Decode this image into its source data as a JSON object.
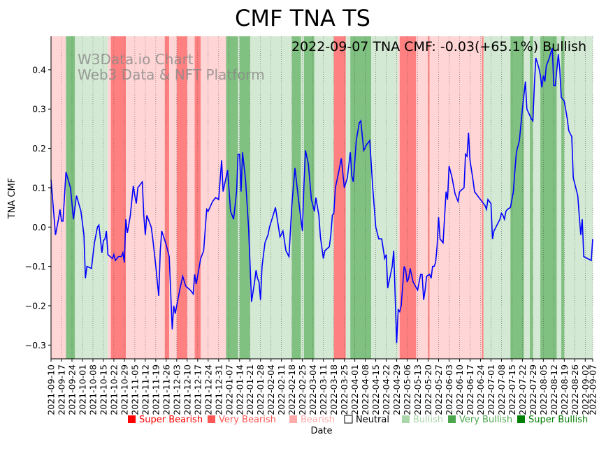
{
  "chart_data": {
    "type": "line",
    "title": "CMF TNA TS",
    "status_label": "2022-09-07 TNA CMF: -0.03(+65.1%) Bullish",
    "watermark": [
      "W3Data.io Chart",
      "Web3 Data & NFT Platform"
    ],
    "xlabel": "Date",
    "ylabel": "TNA CMF",
    "ylim": [
      -0.335,
      0.485
    ],
    "yticks": [
      -0.3,
      -0.2,
      -0.1,
      0.0,
      0.1,
      0.2,
      0.3,
      0.4
    ],
    "ytick_labels": [
      "−0.3",
      "−0.2",
      "−0.1",
      "0.0",
      "0.1",
      "0.2",
      "0.3",
      "0.4"
    ],
    "xlim": [
      0,
      362
    ],
    "xticks": [
      0,
      7,
      14,
      21,
      28,
      35,
      42,
      49,
      56,
      63,
      70,
      77,
      84,
      91,
      98,
      105,
      112,
      119,
      126,
      133,
      140,
      147,
      154,
      161,
      168,
      175,
      182,
      189,
      196,
      203,
      210,
      217,
      224,
      231,
      238,
      245,
      252,
      259,
      266,
      273,
      280,
      287,
      294,
      301,
      308,
      315,
      322,
      329,
      336,
      343,
      350,
      357,
      362
    ],
    "xtick_labels": [
      "2021-09-10",
      "2021-09-17",
      "2021-09-24",
      "2021-10-01",
      "2021-10-08",
      "2021-10-15",
      "2021-10-22",
      "2021-10-29",
      "2021-11-05",
      "2021-11-12",
      "2021-11-19",
      "2021-11-26",
      "2021-12-03",
      "2021-12-10",
      "2021-12-17",
      "2021-12-24",
      "2021-12-31",
      "2022-01-07",
      "2022-01-14",
      "2022-01-21",
      "2022-01-28",
      "2022-02-04",
      "2022-02-11",
      "2022-02-18",
      "2022-02-25",
      "2022-03-04",
      "2022-03-11",
      "2022-03-18",
      "2022-03-25",
      "2022-04-01",
      "2022-04-08",
      "2022-04-15",
      "2022-04-22",
      "2022-04-29",
      "2022-05-06",
      "2022-05-13",
      "2022-05-20",
      "2022-05-27",
      "2022-06-03",
      "2022-06-10",
      "2022-06-17",
      "2022-06-24",
      "2022-07-01",
      "2022-07-08",
      "2022-07-15",
      "2022-07-22",
      "2022-07-29",
      "2022-08-05",
      "2022-08-12",
      "2022-08-19",
      "2022-08-26",
      "2022-09-02",
      "2022-09-07"
    ],
    "series": [
      {
        "name": "TNA CMF",
        "color": "#0000ff",
        "points": [
          [
            0,
            0.12
          ],
          [
            3,
            -0.02
          ],
          [
            5,
            0.02
          ],
          [
            6,
            0.045
          ],
          [
            7,
            0.015
          ],
          [
            8,
            0.015
          ],
          [
            10,
            0.14
          ],
          [
            13,
            0.1
          ],
          [
            15,
            0.02
          ],
          [
            17,
            0.08
          ],
          [
            20,
            0.04
          ],
          [
            22,
            -0.02
          ],
          [
            23,
            -0.13
          ],
          [
            24,
            -0.1
          ],
          [
            27,
            -0.105
          ],
          [
            29,
            -0.04
          ],
          [
            31,
            0.0
          ],
          [
            32,
            0.005
          ],
          [
            34,
            -0.065
          ],
          [
            35,
            -0.035
          ],
          [
            36,
            -0.03
          ],
          [
            37,
            -0.01
          ],
          [
            38,
            -0.07
          ],
          [
            41,
            -0.08
          ],
          [
            42,
            -0.07
          ],
          [
            43,
            -0.085
          ],
          [
            45,
            -0.075
          ],
          [
            47,
            -0.075
          ],
          [
            48,
            -0.065
          ],
          [
            49,
            -0.09
          ],
          [
            50,
            0.02
          ],
          [
            51,
            -0.015
          ],
          [
            53,
            0.03
          ],
          [
            55,
            0.105
          ],
          [
            56,
            0.08
          ],
          [
            57,
            0.06
          ],
          [
            58,
            0.1
          ],
          [
            61,
            0.115
          ],
          [
            62,
            0.03
          ],
          [
            63,
            -0.02
          ],
          [
            64,
            0.03
          ],
          [
            67,
            0.0
          ],
          [
            68,
            -0.03
          ],
          [
            70,
            -0.1
          ],
          [
            72,
            -0.175
          ],
          [
            73,
            -0.06
          ],
          [
            74,
            -0.01
          ],
          [
            77,
            -0.045
          ],
          [
            79,
            -0.075
          ],
          [
            81,
            -0.26
          ],
          [
            82,
            -0.2
          ],
          [
            83,
            -0.22
          ],
          [
            86,
            -0.16
          ],
          [
            88,
            -0.125
          ],
          [
            90,
            -0.15
          ],
          [
            93,
            -0.16
          ],
          [
            95,
            -0.17
          ],
          [
            96,
            -0.12
          ],
          [
            97,
            -0.145
          ],
          [
            100,
            -0.08
          ],
          [
            102,
            -0.06
          ],
          [
            104,
            0.045
          ],
          [
            105,
            0.04
          ],
          [
            108,
            0.065
          ],
          [
            110,
            0.075
          ],
          [
            112,
            0.07
          ],
          [
            114,
            0.17
          ],
          [
            115,
            0.09
          ],
          [
            118,
            0.145
          ],
          [
            120,
            0.04
          ],
          [
            122,
            0.02
          ],
          [
            124,
            0.09
          ],
          [
            125,
            0.185
          ],
          [
            126,
            0.185
          ],
          [
            127,
            0.09
          ],
          [
            128,
            0.19
          ],
          [
            130,
            0.12
          ],
          [
            132,
            0.0
          ],
          [
            134,
            -0.19
          ],
          [
            136,
            -0.14
          ],
          [
            137,
            -0.11
          ],
          [
            138,
            -0.13
          ],
          [
            139,
            -0.14
          ],
          [
            140,
            -0.185
          ],
          [
            141,
            -0.1
          ],
          [
            143,
            -0.04
          ],
          [
            145,
            -0.02
          ],
          [
            146,
            0.0
          ],
          [
            148,
            0.025
          ],
          [
            150,
            0.05
          ],
          [
            153,
            -0.025
          ],
          [
            155,
            -0.01
          ],
          [
            157,
            -0.06
          ],
          [
            159,
            -0.075
          ],
          [
            161,
            0.06
          ],
          [
            163,
            0.15
          ],
          [
            166,
            0.05
          ],
          [
            168,
            -0.01
          ],
          [
            169,
            0.105
          ],
          [
            170,
            0.195
          ],
          [
            172,
            0.16
          ],
          [
            174,
            0.07
          ],
          [
            176,
            0.04
          ],
          [
            177,
            0.075
          ],
          [
            179,
            0.03
          ],
          [
            180,
            -0.025
          ],
          [
            182,
            -0.08
          ],
          [
            183,
            -0.06
          ],
          [
            186,
            -0.05
          ],
          [
            187,
            -0.02
          ],
          [
            188,
            0.03
          ],
          [
            189,
            0.035
          ],
          [
            190,
            0.1
          ],
          [
            192,
            0.135
          ],
          [
            194,
            0.175
          ],
          [
            196,
            0.1
          ],
          [
            198,
            0.125
          ],
          [
            200,
            0.19
          ],
          [
            201,
            0.13
          ],
          [
            202,
            0.115
          ],
          [
            204,
            0.22
          ],
          [
            206,
            0.265
          ],
          [
            207,
            0.27
          ],
          [
            209,
            0.195
          ],
          [
            211,
            0.21
          ],
          [
            213,
            0.22
          ],
          [
            215,
            0.1
          ],
          [
            217,
            0.0
          ],
          [
            219,
            -0.03
          ],
          [
            221,
            -0.03
          ],
          [
            223,
            -0.08
          ],
          [
            224,
            -0.07
          ],
          [
            225,
            -0.155
          ],
          [
            228,
            -0.1
          ],
          [
            229,
            -0.06
          ],
          [
            231,
            -0.295
          ],
          [
            232,
            -0.21
          ],
          [
            233,
            -0.215
          ],
          [
            234,
            -0.2
          ],
          [
            236,
            -0.1
          ],
          [
            237,
            -0.11
          ],
          [
            238,
            -0.14
          ],
          [
            239,
            -0.13
          ],
          [
            240,
            -0.105
          ],
          [
            242,
            -0.14
          ],
          [
            245,
            -0.16
          ],
          [
            247,
            -0.12
          ],
          [
            248,
            -0.12
          ],
          [
            249,
            -0.185
          ],
          [
            250,
            -0.16
          ],
          [
            251,
            -0.125
          ],
          [
            253,
            -0.12
          ],
          [
            254,
            -0.13
          ],
          [
            255,
            -0.1
          ],
          [
            256,
            -0.1
          ],
          [
            257,
            -0.09
          ],
          [
            258,
            -0.05
          ],
          [
            259,
            0.025
          ],
          [
            260,
            -0.03
          ],
          [
            262,
            -0.04
          ],
          [
            264,
            0.09
          ],
          [
            265,
            0.07
          ],
          [
            266,
            0.155
          ],
          [
            268,
            0.125
          ],
          [
            270,
            0.085
          ],
          [
            272,
            0.065
          ],
          [
            273,
            0.09
          ],
          [
            276,
            0.1
          ],
          [
            277,
            0.185
          ],
          [
            278,
            0.18
          ],
          [
            279,
            0.24
          ],
          [
            280,
            0.17
          ],
          [
            282,
            0.12
          ],
          [
            283,
            0.09
          ],
          [
            285,
            0.08
          ],
          [
            287,
            0.07
          ],
          [
            290,
            0.055
          ],
          [
            291,
            0.045
          ],
          [
            292,
            0.07
          ],
          [
            294,
            0.06
          ],
          [
            295,
            -0.03
          ],
          [
            296,
            -0.01
          ],
          [
            298,
            0.005
          ],
          [
            300,
            0.02
          ],
          [
            301,
            0.035
          ],
          [
            302,
            0.03
          ],
          [
            303,
            0.02
          ],
          [
            304,
            0.04
          ],
          [
            305,
            0.045
          ],
          [
            307,
            0.05
          ],
          [
            309,
            0.09
          ],
          [
            310,
            0.145
          ],
          [
            311,
            0.19
          ],
          [
            313,
            0.22
          ],
          [
            315,
            0.3
          ],
          [
            317,
            0.37
          ],
          [
            318,
            0.3
          ],
          [
            321,
            0.275
          ],
          [
            322,
            0.27
          ],
          [
            323,
            0.36
          ],
          [
            324,
            0.43
          ],
          [
            326,
            0.405
          ],
          [
            327,
            0.385
          ],
          [
            328,
            0.355
          ],
          [
            329,
            0.385
          ],
          [
            330,
            0.37
          ],
          [
            331,
            0.41
          ],
          [
            333,
            0.43
          ],
          [
            335,
            0.455
          ],
          [
            336,
            0.36
          ],
          [
            337,
            0.36
          ],
          [
            339,
            0.44
          ],
          [
            340,
            0.4
          ],
          [
            341,
            0.33
          ],
          [
            343,
            0.32
          ],
          [
            345,
            0.275
          ],
          [
            346,
            0.245
          ],
          [
            348,
            0.23
          ],
          [
            349,
            0.125
          ],
          [
            352,
            0.08
          ],
          [
            353,
            0.03
          ],
          [
            354,
            -0.02
          ],
          [
            355,
            0.02
          ],
          [
            356,
            -0.075
          ],
          [
            361,
            -0.085
          ],
          [
            362,
            -0.03
          ]
        ]
      }
    ],
    "signal_bands": [
      {
        "start": 0,
        "end": 10,
        "level": "Bearish"
      },
      {
        "start": 10,
        "end": 16,
        "level": "Very Bullish"
      },
      {
        "start": 16,
        "end": 38,
        "level": "Bullish"
      },
      {
        "start": 38,
        "end": 40,
        "level": "Bearish"
      },
      {
        "start": 40,
        "end": 50,
        "level": "Very Bearish"
      },
      {
        "start": 50,
        "end": 76,
        "level": "Bearish"
      },
      {
        "start": 76,
        "end": 79,
        "level": "Very Bearish"
      },
      {
        "start": 79,
        "end": 84,
        "level": "Bearish"
      },
      {
        "start": 84,
        "end": 91,
        "level": "Very Bearish"
      },
      {
        "start": 91,
        "end": 96,
        "level": "Bearish"
      },
      {
        "start": 96,
        "end": 100,
        "level": "Very Bearish"
      },
      {
        "start": 100,
        "end": 117,
        "level": "Bearish"
      },
      {
        "start": 117,
        "end": 125,
        "level": "Very Bullish"
      },
      {
        "start": 125,
        "end": 126,
        "level": "Bullish"
      },
      {
        "start": 126,
        "end": 133,
        "level": "Very Bullish"
      },
      {
        "start": 133,
        "end": 161,
        "level": "Bullish"
      },
      {
        "start": 161,
        "end": 167,
        "level": "Very Bullish"
      },
      {
        "start": 167,
        "end": 169,
        "level": "Bullish"
      },
      {
        "start": 169,
        "end": 176,
        "level": "Very Bullish"
      },
      {
        "start": 176,
        "end": 189,
        "level": "Bullish"
      },
      {
        "start": 189,
        "end": 197,
        "level": "Very Bearish"
      },
      {
        "start": 197,
        "end": 200,
        "level": "Bullish"
      },
      {
        "start": 200,
        "end": 214,
        "level": "Very Bullish"
      },
      {
        "start": 214,
        "end": 232,
        "level": "Bullish"
      },
      {
        "start": 232,
        "end": 233,
        "level": "Bearish"
      },
      {
        "start": 233,
        "end": 244,
        "level": "Very Bearish"
      },
      {
        "start": 244,
        "end": 252,
        "level": "Bearish"
      },
      {
        "start": 252,
        "end": 253,
        "level": "Very Bearish"
      },
      {
        "start": 253,
        "end": 288,
        "level": "Bearish"
      },
      {
        "start": 288,
        "end": 289,
        "level": "Very Bearish"
      },
      {
        "start": 289,
        "end": 307,
        "level": "Bullish"
      },
      {
        "start": 307,
        "end": 316,
        "level": "Very Bullish"
      },
      {
        "start": 316,
        "end": 320,
        "level": "Bullish"
      },
      {
        "start": 320,
        "end": 322,
        "level": "Very Bullish"
      },
      {
        "start": 322,
        "end": 327,
        "level": "Bullish"
      },
      {
        "start": 327,
        "end": 338,
        "level": "Very Bullish"
      },
      {
        "start": 338,
        "end": 341,
        "level": "Bullish"
      },
      {
        "start": 341,
        "end": 343,
        "level": "Very Bullish"
      },
      {
        "start": 343,
        "end": 362,
        "level": "Bullish"
      }
    ],
    "legend": [
      {
        "label": "Super Bearish",
        "color": "#ff0000"
      },
      {
        "label": "Very Bearish",
        "color": "#ff5555"
      },
      {
        "label": "Bearish",
        "color": "#ffaaaa"
      },
      {
        "label": "Neutral",
        "color": "#000000"
      },
      {
        "label": "Bullish",
        "color": "#aad6aa"
      },
      {
        "label": "Very Bullish",
        "color": "#4ca64c"
      },
      {
        "label": "Super Bullish",
        "color": "#008000"
      }
    ],
    "band_colors": {
      "Bearish": "#ffd5d5",
      "Very Bearish": "#ff8080",
      "Bullish": "#d3e9d3",
      "Very Bullish": "#80c080"
    }
  }
}
